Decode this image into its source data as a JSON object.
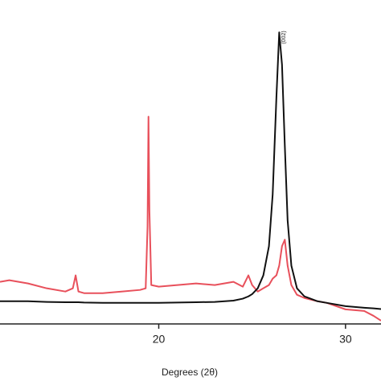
{
  "chart_data": {
    "type": "line",
    "x_label": "Degrees (2θ)",
    "annotation": "(002)",
    "x": [
      11.5,
      12,
      13,
      14,
      15,
      15.4,
      15.55,
      15.7,
      16,
      17,
      18,
      19,
      19.3,
      19.4,
      19.45,
      19.5,
      19.6,
      20,
      21,
      22,
      23,
      24,
      24.5,
      24.8,
      25,
      25.3,
      25.6,
      25.9,
      26.1,
      26.3,
      26.45,
      26.6,
      26.75,
      26.9,
      27.1,
      27.4,
      27.8,
      28.5,
      29,
      30,
      31,
      31.5,
      31.9
    ],
    "series": [
      {
        "color": "#111111",
        "values": [
          7,
          7,
          7,
          6.8,
          6.7,
          6.7,
          6.7,
          6.7,
          6.6,
          6.5,
          6.5,
          6.5,
          6.5,
          6.5,
          6.5,
          6.5,
          6.5,
          6.5,
          6.6,
          6.7,
          6.8,
          7.2,
          7.8,
          8.5,
          9.2,
          11,
          15,
          24,
          40,
          70,
          90,
          80,
          55,
          32,
          18,
          11,
          8.5,
          7,
          6.5,
          5.5,
          5,
          4.8,
          4.6
        ]
      },
      {
        "color": "#e8505b",
        "values": [
          13,
          13.5,
          12.5,
          11,
          10,
          11,
          15,
          10,
          9.5,
          9.5,
          10,
          10.5,
          11,
          30,
          64,
          35,
          12,
          11.5,
          12,
          12.5,
          12,
          13,
          11.5,
          15,
          12,
          10,
          11,
          12,
          14,
          15,
          18,
          24,
          26,
          18,
          12,
          9,
          8,
          7,
          6.5,
          4.5,
          4,
          2.5,
          1
        ]
      }
    ],
    "xlim": [
      11.5,
      31.9
    ],
    "xticks": [
      20,
      30
    ],
    "ylim": [
      0,
      100
    ]
  }
}
